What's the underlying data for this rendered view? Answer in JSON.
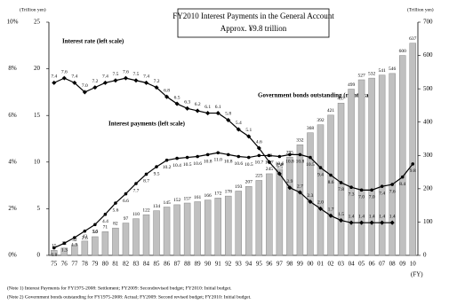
{
  "chart_data": {
    "type": "combo",
    "title": "FY2010 Interest Payments in the General Account",
    "subtitle": "Approx. ¥9.8 trillion",
    "y_unit_label": "(Trillion yen)",
    "y2_unit_label": "(Trillion yen)",
    "x_unit_label": "(FY)",
    "annotations": [
      "Interest rate (left scale)",
      "Interest payments (left scale)",
      "Government bonds outstanding (right scale)"
    ],
    "notes": [
      "(Note 1) Interest Payments for FY1975-2008: Settlement; FY2009: Secondrevised budget; FY2010: Initial budget.",
      "(Note 2) Government bonds outstanding for FY1975-2008: Actual; FY2009: Second revised budget; FY2010: Initial budget."
    ],
    "categories": [
      "75",
      "76",
      "77",
      "78",
      "79",
      "80",
      "81",
      "82",
      "83",
      "84",
      "85",
      "86",
      "87",
      "88",
      "89",
      "90",
      "91",
      "92",
      "93",
      "94",
      "95",
      "96",
      "97",
      "98",
      "99",
      "00",
      "01",
      "02",
      "03",
      "04",
      "05",
      "06",
      "07",
      "08",
      "09",
      "10"
    ],
    "ylim": [
      0,
      25
    ],
    "yticks": [
      0,
      5,
      10,
      15,
      20,
      25
    ],
    "y2lim": [
      0,
      700
    ],
    "y2ticks": [
      0,
      100,
      200,
      300,
      400,
      500,
      600,
      700
    ],
    "y3lim": [
      0,
      10
    ],
    "y3ticks": [
      {
        "value": 0,
        "label": "0%"
      },
      {
        "value": 2,
        "label": "2%"
      },
      {
        "value": 4,
        "label": "4%"
      },
      {
        "value": 6,
        "label": "6%"
      },
      {
        "value": 8,
        "label": "8%"
      },
      {
        "value": 10,
        "label": "10%"
      }
    ],
    "series": [
      {
        "name": "Government bonds outstanding",
        "kind": "bar",
        "axis": "y2",
        "color": "#c0c0c0",
        "values": [
          15,
          22,
          32,
          43,
          56,
          71,
          82,
          97,
          110,
          122,
          134,
          145,
          152,
          157,
          161,
          166,
          172,
          178,
          193,
          207,
          225,
          245,
          258,
          295,
          332,
          368,
          392,
          421,
          457,
          499,
          527,
          532,
          541,
          546,
          600,
          637
        ]
      },
      {
        "name": "Interest payments",
        "kind": "line",
        "axis": "y",
        "color": "#000000",
        "values": [
          0.8,
          1.3,
          1.9,
          2.6,
          3.3,
          4.4,
          5.6,
          6.6,
          7.7,
          8.7,
          9.5,
          10.2,
          10.4,
          10.5,
          10.6,
          10.8,
          11.0,
          10.8,
          10.6,
          10.5,
          10.7,
          10.7,
          10.6,
          10.8,
          10.8,
          10.5,
          9.4,
          8.6,
          7.8,
          7.3,
          7.0,
          7.0,
          7.4,
          7.6,
          8.4,
          9.8
        ],
        "value_labels": [
          "0.8",
          "1.3",
          "1.9",
          "2.6",
          "3.3",
          "4.4",
          "5.6",
          "6.6",
          "7.7",
          "8.7",
          "9.5",
          "10.2",
          "10.4",
          "10.5",
          "10.6",
          "10.8",
          "11.0",
          "10.8",
          "10.6",
          "10.5",
          "10.7",
          "10.7",
          "10.6",
          "10.8",
          "10.8",
          "10.5",
          "9.4",
          "8.6",
          "7.8",
          "7.3",
          "7.0",
          "7.0",
          "7.4",
          "7.6",
          "8.4",
          "9.8"
        ]
      },
      {
        "name": "Interest rate",
        "kind": "line",
        "axis": "y3",
        "color": "#000000",
        "values": [
          7.4,
          7.6,
          7.4,
          7.0,
          7.2,
          7.4,
          7.5,
          7.6,
          7.5,
          7.4,
          7.2,
          6.8,
          6.5,
          6.3,
          6.2,
          6.1,
          6.1,
          5.8,
          5.4,
          5.1,
          4.6,
          4.0,
          3.5,
          2.9,
          2.7,
          2.3,
          2.0,
          1.7,
          1.5,
          1.4,
          1.4,
          1.4,
          1.4,
          1.4,
          null,
          null
        ],
        "value_labels": [
          "7.4",
          "7.6",
          "7.4",
          "7.0",
          "7.2",
          "7.4",
          "7.5",
          "7.6",
          "7.5",
          "7.4",
          "7.2",
          "6.8",
          "6.5",
          "6.3",
          "6.2",
          "6.1",
          "6.1",
          "5.8",
          "5.4",
          "5.1",
          "4.6",
          "4.0",
          "3.5",
          "2.9",
          "2.7",
          "2.3",
          "2.0",
          "1.7",
          "1.5",
          "1.4",
          "1.4",
          "1.4",
          "1.4",
          "1.4",
          null,
          null
        ]
      }
    ]
  }
}
